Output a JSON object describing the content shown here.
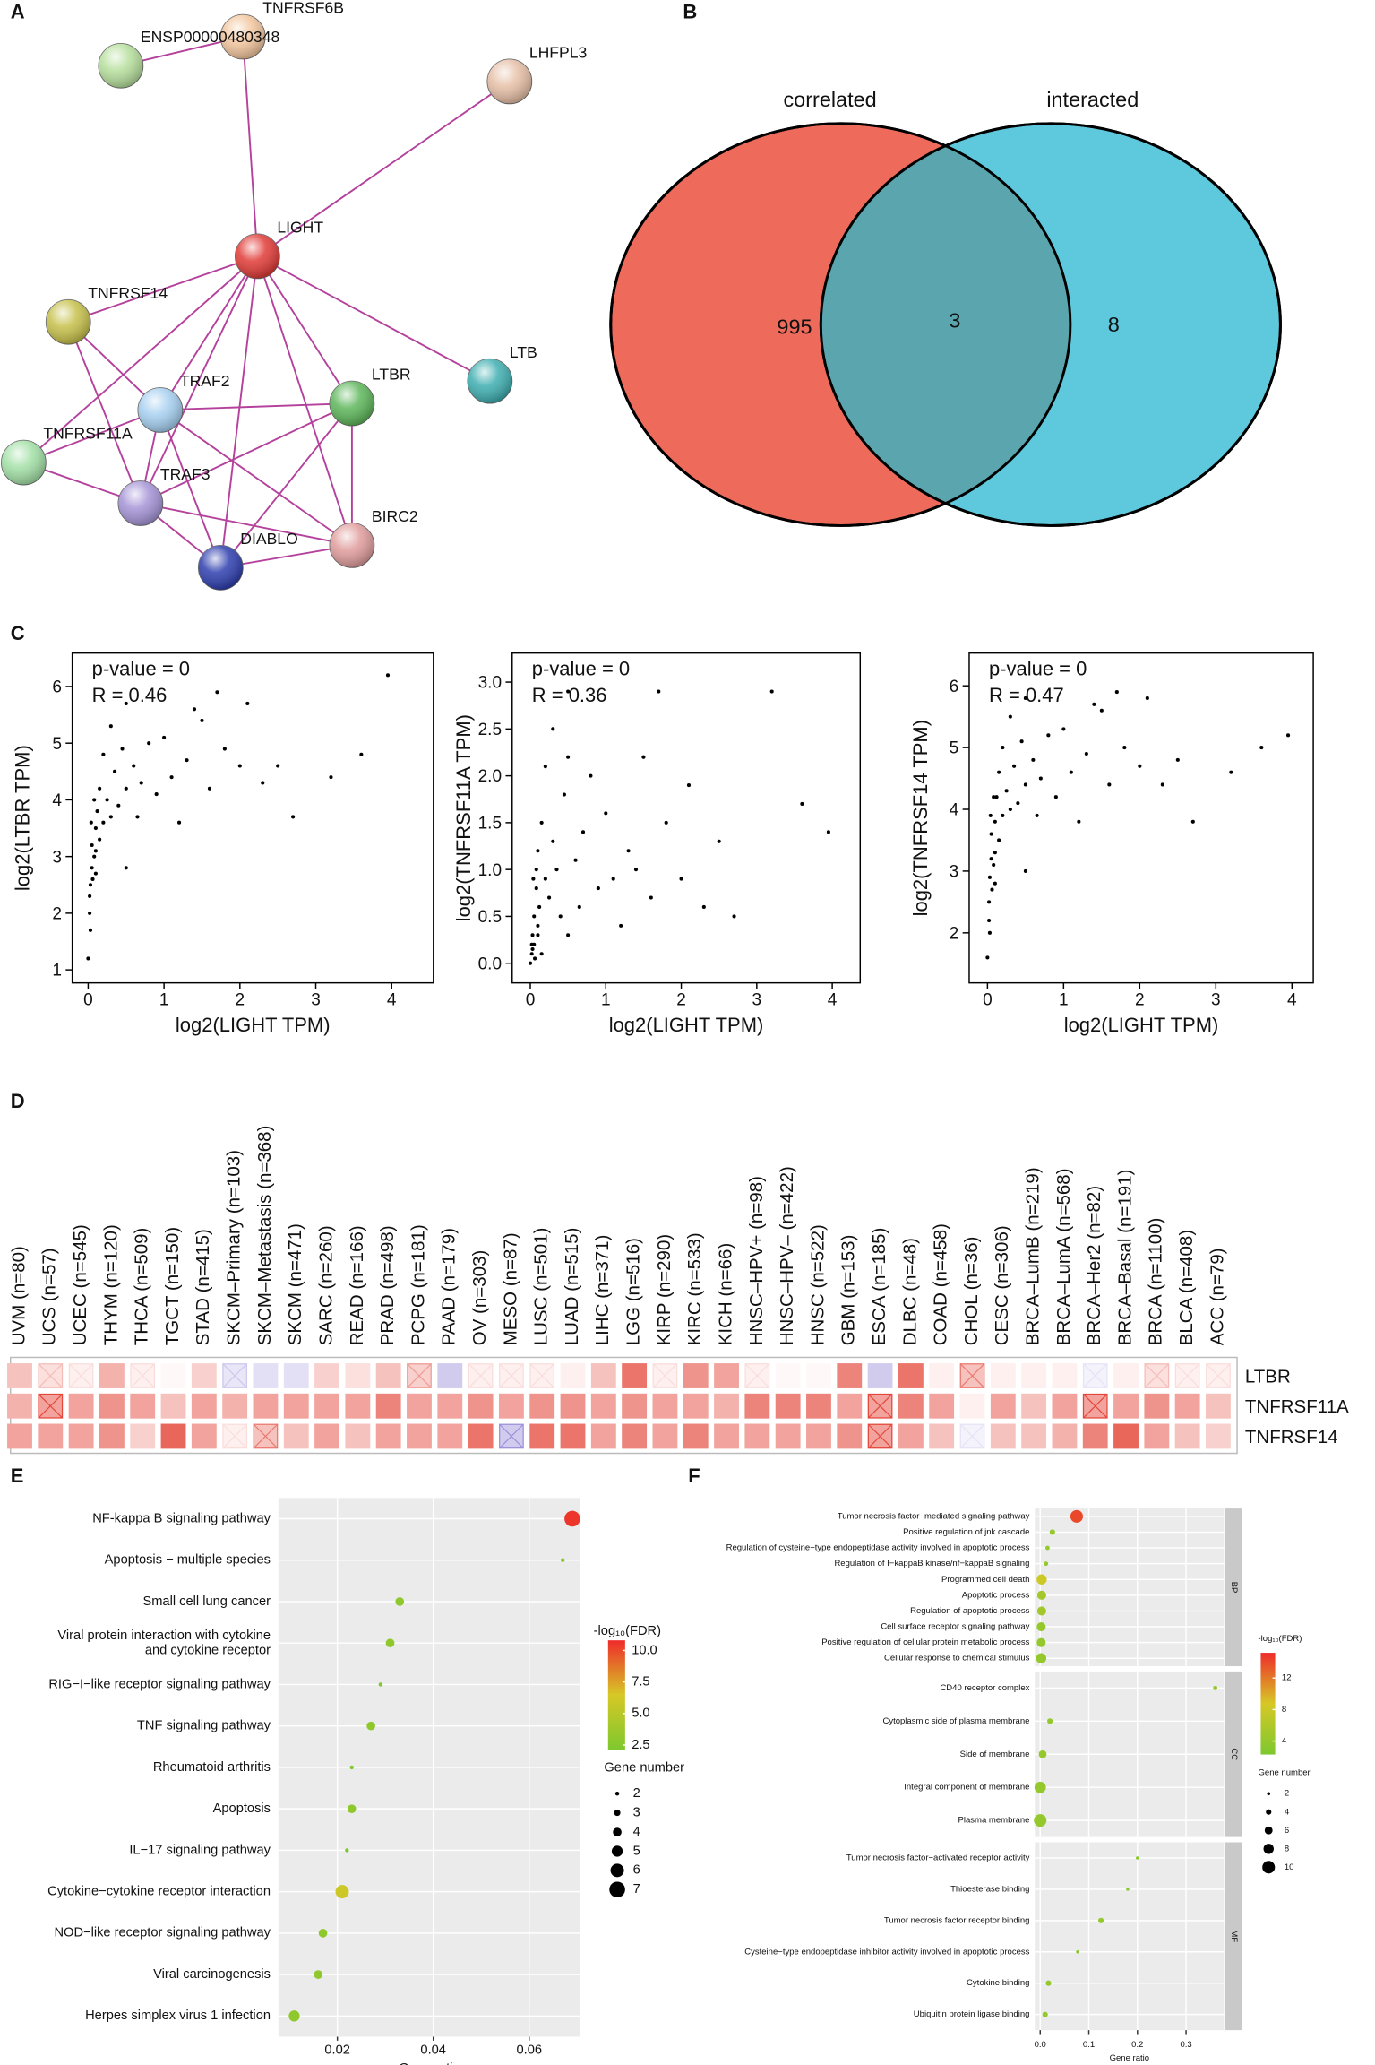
{
  "chart_data": [
    {
      "type": "network",
      "label": "A",
      "edge_color": "#b4419c",
      "nodes": [
        {
          "name": "TNFRSF6B",
          "color": "#f3c69e"
        },
        {
          "name": "ENSP00000480348",
          "color": "#b6df9c"
        },
        {
          "name": "LHFPL3",
          "color": "#e6bfa6"
        },
        {
          "name": "LIGHT",
          "color": "#e03a36"
        },
        {
          "name": "TNFRSF14",
          "color": "#c6c04a"
        },
        {
          "name": "TRAF2",
          "color": "#a6cff0"
        },
        {
          "name": "LTBR",
          "color": "#5db65a"
        },
        {
          "name": "LTB",
          "color": "#3eaeb0"
        },
        {
          "name": "TNFRSF11A",
          "color": "#a2e0a6"
        },
        {
          "name": "TRAF3",
          "color": "#a594d6"
        },
        {
          "name": "DIABLO",
          "color": "#2e3eae"
        },
        {
          "name": "BIRC2",
          "color": "#e09c9c"
        }
      ],
      "edges": [
        [
          1,
          0
        ],
        [
          0,
          3
        ],
        [
          2,
          3
        ],
        [
          3,
          4
        ],
        [
          3,
          5
        ],
        [
          3,
          6
        ],
        [
          3,
          7
        ],
        [
          3,
          8
        ],
        [
          3,
          9
        ],
        [
          3,
          10
        ],
        [
          3,
          11
        ],
        [
          4,
          5
        ],
        [
          4,
          9
        ],
        [
          5,
          8
        ],
        [
          5,
          9
        ],
        [
          5,
          6
        ],
        [
          5,
          11
        ],
        [
          5,
          10
        ],
        [
          9,
          8
        ],
        [
          9,
          6
        ],
        [
          9,
          11
        ],
        [
          9,
          10
        ],
        [
          6,
          11
        ],
        [
          6,
          10
        ],
        [
          10,
          11
        ]
      ]
    },
    {
      "type": "venn",
      "label": "B",
      "sets": [
        {
          "name": "correlated",
          "color": "#ee6b5b",
          "value": 995
        },
        {
          "name": "interacted",
          "color": "#5ec8dc",
          "value": 8
        }
      ],
      "intersection": {
        "value": 3,
        "color": "#5ba6ae"
      }
    },
    {
      "type": "scatter",
      "label": "C",
      "xlabel": "log2(LIGHT TPM)",
      "ylabel": "log2(LTBR TPM)",
      "annotations": [
        "p-value = 0",
        "R = 0.46"
      ],
      "xlim": [
        -0.21,
        4.55
      ],
      "ylim": [
        0.77,
        6.59
      ],
      "xticks": [
        0,
        1,
        2,
        3,
        4
      ],
      "yticks": [
        1,
        2,
        3,
        4,
        5,
        6
      ],
      "x": [
        0,
        0.02,
        0.03,
        0.05,
        0.05,
        0.08,
        0.1,
        0.1,
        0.12,
        0.15,
        0.15,
        0.2,
        0.2,
        0.25,
        0.3,
        0.3,
        0.35,
        0.4,
        0.45,
        0.5,
        0.5,
        0.6,
        0.65,
        0.7,
        0.8,
        0.9,
        1.0,
        1.1,
        1.2,
        1.3,
        1.5,
        1.6,
        1.7,
        1.8,
        2.0,
        2.1,
        2.3,
        2.5,
        2.7,
        3.2,
        3.6,
        3.95,
        0.02,
        0.04,
        0.06,
        0.08,
        0.1,
        0.03,
        0.5,
        1.4
      ],
      "y": [
        1.2,
        2.0,
        2.5,
        2.8,
        3.2,
        3.0,
        3.5,
        2.7,
        3.8,
        3.3,
        4.2,
        3.6,
        4.8,
        4.0,
        3.7,
        5.3,
        4.5,
        3.9,
        4.9,
        4.2,
        5.7,
        4.6,
        3.7,
        4.3,
        5.0,
        4.1,
        5.1,
        4.4,
        3.6,
        4.7,
        5.4,
        4.2,
        5.9,
        4.9,
        4.6,
        5.7,
        4.3,
        4.6,
        3.7,
        4.4,
        4.8,
        6.2,
        2.3,
        3.6,
        2.6,
        4.0,
        3.1,
        1.7,
        2.8,
        5.6
      ]
    },
    {
      "type": "scatter",
      "xlabel": "log2(LIGHT TPM)",
      "ylabel": "log2(TNFRSF11A TPM)",
      "annotations": [
        "p-value = 0",
        "R = 0.36"
      ],
      "xlim": [
        -0.24,
        4.37
      ],
      "ylim": [
        -0.21,
        3.31
      ],
      "xticks": [
        0,
        1,
        2,
        3,
        4
      ],
      "yticks": [
        {
          "value": 0,
          "label": "0.0"
        },
        0.5,
        {
          "value": 1,
          "label": "1.0"
        },
        1.5,
        {
          "value": 2,
          "label": "2.0"
        },
        2.5,
        {
          "value": 3,
          "label": "3.0"
        }
      ],
      "x": [
        0,
        0.02,
        0.03,
        0.05,
        0.05,
        0.08,
        0.1,
        0.1,
        0.12,
        0.15,
        0.15,
        0.2,
        0.2,
        0.25,
        0.3,
        0.3,
        0.35,
        0.4,
        0.45,
        0.5,
        0.5,
        0.6,
        0.65,
        0.7,
        0.8,
        0.9,
        1.0,
        1.1,
        1.2,
        1.3,
        1.5,
        1.6,
        1.7,
        1.8,
        2.0,
        2.1,
        2.3,
        2.5,
        2.7,
        3.2,
        3.6,
        3.95,
        0.02,
        0.04,
        0.06,
        0.08,
        0.1,
        0.03,
        0.5,
        1.4
      ],
      "y": [
        0.0,
        0.1,
        0.3,
        0.5,
        0.2,
        0.8,
        0.4,
        1.2,
        0.6,
        0.1,
        1.5,
        0.9,
        2.1,
        0.7,
        1.3,
        2.5,
        1.0,
        0.5,
        1.8,
        0.3,
        2.9,
        1.1,
        0.6,
        1.4,
        2.0,
        0.8,
        1.6,
        0.9,
        0.4,
        1.2,
        2.2,
        0.7,
        2.9,
        1.5,
        0.9,
        1.9,
        0.6,
        1.3,
        0.5,
        2.9,
        1.7,
        1.4,
        0.2,
        0.9,
        0.05,
        1.0,
        0.3,
        0.15,
        2.2,
        1.0
      ]
    },
    {
      "type": "scatter",
      "xlabel": "log2(LIGHT TPM)",
      "ylabel": "log2(TNFRSF14 TPM)",
      "annotations": [
        "p-value = 0",
        "R = 0.47"
      ],
      "xlim": [
        -0.24,
        4.28
      ],
      "ylim": [
        1.19,
        6.53
      ],
      "xticks": [
        0,
        1,
        2,
        3,
        4
      ],
      "yticks": [
        2,
        3,
        4,
        5,
        6
      ],
      "x": [
        0,
        0.02,
        0.03,
        0.05,
        0.05,
        0.08,
        0.1,
        0.1,
        0.12,
        0.15,
        0.15,
        0.2,
        0.2,
        0.25,
        0.3,
        0.3,
        0.35,
        0.4,
        0.45,
        0.5,
        0.5,
        0.6,
        0.65,
        0.7,
        0.8,
        0.9,
        1.0,
        1.1,
        1.2,
        1.3,
        1.5,
        1.6,
        1.7,
        1.8,
        2.0,
        2.1,
        2.3,
        2.5,
        2.7,
        3.2,
        3.6,
        3.95,
        0.02,
        0.04,
        0.06,
        0.08,
        0.1,
        0.03,
        0.5,
        1.4
      ],
      "y": [
        1.6,
        2.5,
        2.9,
        3.2,
        3.6,
        3.1,
        3.8,
        2.8,
        4.2,
        3.5,
        4.6,
        3.9,
        5.0,
        4.3,
        4.0,
        5.5,
        4.7,
        4.1,
        5.1,
        4.4,
        5.8,
        4.8,
        3.9,
        4.5,
        5.2,
        4.2,
        5.3,
        4.6,
        3.8,
        4.9,
        5.6,
        4.4,
        5.9,
        5.0,
        4.7,
        5.8,
        4.4,
        4.8,
        3.8,
        4.6,
        5.0,
        5.2,
        2.2,
        3.9,
        2.7,
        4.2,
        3.3,
        2.0,
        3.0,
        5.7
      ]
    },
    {
      "type": "heatmap",
      "label": "D",
      "clim": [
        -0.6,
        0.6
      ],
      "colors": [
        "#7566cc",
        "#ffffff",
        "#e4473a"
      ],
      "columns": [
        "UVM (n=80)",
        "UCS (n=57)",
        "UCEC (n=545)",
        "THYM (n=120)",
        "THCA (n=509)",
        "TGCT (n=150)",
        "STAD (n=415)",
        "SKCM–Primary (n=103)",
        "SKCM–Metastasis (n=368)",
        "SKCM (n=471)",
        "SARC (n=260)",
        "READ (n=166)",
        "PRAD (n=498)",
        "PCPG (n=181)",
        "PAAD (n=179)",
        "OV (n=303)",
        "MESO (n=87)",
        "LUSC (n=501)",
        "LUAD (n=515)",
        "LIHC (n=371)",
        "LGG (n=516)",
        "KIRP (n=290)",
        "KIRC (n=533)",
        "KICH (n=66)",
        "HNSC–HPV+ (n=98)",
        "HNSC–HPV– (n=422)",
        "HNSC (n=522)",
        "GBM (n=153)",
        "ESCA (n=185)",
        "DLBC (n=48)",
        "COAD (n=458)",
        "CHOL (n=36)",
        "CESC (n=306)",
        "BRCA–LumB (n=219)",
        "BRCA–LumA (n=568)",
        "BRCA–Her2 (n=82)",
        "BRCA–Basal (n=191)",
        "BRCA (n=1100)",
        "BLCA (n=408)",
        "ACC (n=79)"
      ],
      "rows": [
        "LTBR",
        "TNFRSF11A",
        "TNFRSF14"
      ],
      "values": [
        [
          0.2,
          0.1,
          0.05,
          0.25,
          0.05,
          0.02,
          0.15,
          -0.1,
          -0.12,
          -0.12,
          0.15,
          0.1,
          0.2,
          0.15,
          -0.2,
          0.05,
          0.05,
          0.05,
          0.05,
          0.2,
          0.45,
          0.05,
          0.35,
          0.3,
          0.05,
          0.02,
          0.02,
          0.4,
          -0.2,
          0.45,
          0.05,
          0.2,
          0.05,
          0.05,
          0.05,
          -0.05,
          0.05,
          0.1,
          0.05,
          0.05
        ],
        [
          0.25,
          0.3,
          0.3,
          0.35,
          0.3,
          0.2,
          0.3,
          0.25,
          0.3,
          0.3,
          0.3,
          0.3,
          0.4,
          0.3,
          0.3,
          0.35,
          0.3,
          0.35,
          0.35,
          0.3,
          0.35,
          0.3,
          0.3,
          0.25,
          0.4,
          0.4,
          0.4,
          0.3,
          0.3,
          0.4,
          0.3,
          0.05,
          0.3,
          0.2,
          0.3,
          0.3,
          0.3,
          0.35,
          0.3,
          0.2
        ],
        [
          0.3,
          0.3,
          0.3,
          0.35,
          0.15,
          0.5,
          0.3,
          0.05,
          0.2,
          0.2,
          0.3,
          0.2,
          0.3,
          0.3,
          0.3,
          0.45,
          -0.2,
          0.45,
          0.45,
          0.3,
          0.4,
          0.3,
          0.4,
          0.3,
          0.3,
          0.3,
          0.3,
          0.35,
          0.3,
          0.3,
          0.2,
          -0.05,
          0.2,
          0.2,
          0.25,
          0.4,
          0.5,
          0.3,
          0.2,
          0.15
        ]
      ],
      "crossed": [
        [
          1,
          2,
          4,
          7,
          13,
          15,
          16,
          17,
          21,
          24,
          31,
          35,
          37,
          38,
          39
        ],
        [
          1,
          28,
          35
        ],
        [
          7,
          8,
          16,
          28,
          31
        ]
      ]
    },
    {
      "type": "dot",
      "label": "E",
      "xlabel": "Gene ratio",
      "xlim": [
        0.0077,
        0.0707
      ],
      "xticks": [
        0.02,
        0.04,
        0.06
      ],
      "categories": [
        "NF-kappa B signaling pathway",
        "Apoptosis − multiple species",
        "Small cell lung cancer",
        "Viral protein interaction with cytokine\nand cytokine receptor",
        "RIG−I−like receptor signaling pathway",
        "TNF signaling pathway",
        "Rheumatoid arthritis",
        "Apoptosis",
        "IL−17 signaling pathway",
        "Cytokine−cytokine receptor interaction",
        "NOD−like receptor signaling pathway",
        "Viral carcinogenesis",
        "Herpes simplex virus 1 infection"
      ],
      "values": [
        0.069,
        0.067,
        0.033,
        0.031,
        0.029,
        0.027,
        0.023,
        0.023,
        0.022,
        0.021,
        0.017,
        0.016,
        0.011
      ],
      "fdr": [
        10.5,
        2.5,
        3,
        3,
        2.2,
        3,
        2.2,
        3,
        2,
        6,
        3,
        3,
        3
      ],
      "gene_number": [
        7,
        2,
        4,
        4,
        2,
        4,
        2,
        4,
        2,
        6,
        4,
        4,
        5
      ],
      "color_legend": {
        "title": "-log₁₀(FDR)",
        "lim": [
          2.1,
          10.8
        ],
        "colors": [
          "#7dc82e",
          "#d6c826",
          "#ef2b2b"
        ],
        "ticks": [
          {
            "value": 10,
            "label": "10.0"
          },
          7.5,
          {
            "value": 5,
            "label": "5.0"
          },
          2.5
        ]
      },
      "size_legend": {
        "title": "Gene number",
        "values": [
          2,
          3,
          4,
          5,
          6,
          7
        ]
      }
    },
    {
      "type": "dot",
      "label": "F",
      "xlabel": "Gene ratio",
      "xlim": [
        -0.011,
        0.378
      ],
      "xticks": [
        {
          "value": 0,
          "label": "0.0"
        },
        0.1,
        0.2,
        0.3
      ],
      "facets": [
        {
          "name": "BP",
          "categories": [
            "Tumor necrosis factor−mediated signaling pathway",
            "Positive regulation of jnk cascade",
            "Regulation of cysteine−type endopeptidase activity involved in apoptotic process",
            "Regulation of I−kappaB kinase/nf−kappaB signaling",
            "Programmed cell death",
            "Apoptotic process",
            "Regulation of apoptotic process",
            "Cell surface receptor signaling pathway",
            "Positive regulation of cellular protein metabolic process",
            "Cellular response to chemical stimulus"
          ],
          "values": [
            0.075,
            0.025,
            0.015,
            0.012,
            0.003,
            0.003,
            0.003,
            0.002,
            0.002,
            0.002
          ],
          "fdr": [
            14,
            4,
            4,
            4,
            8,
            5,
            5,
            4,
            4,
            4
          ],
          "gene_number": [
            10,
            4,
            3,
            3,
            8,
            7,
            7,
            7,
            7,
            8
          ]
        },
        {
          "name": "CC",
          "categories": [
            "CD40 receptor complex",
            "Cytoplasmic side of plasma membrane",
            "Side of membrane",
            "Integral component of membrane",
            "Plasma membrane"
          ],
          "values": [
            0.36,
            0.02,
            0.005,
            0,
            0
          ],
          "fdr": [
            4,
            4,
            4,
            4,
            4
          ],
          "gene_number": [
            3,
            4,
            6,
            9,
            10
          ]
        },
        {
          "name": "MF",
          "categories": [
            "Tumor necrosis factor−activated receptor activity",
            "Thioesterase binding",
            "Tumor necrosis factor receptor binding",
            "Cysteine−type endopeptidase inhibitor activity involved in apoptotic process",
            "Cytokine binding",
            "Ubiquitin protein ligase binding"
          ],
          "values": [
            0.2,
            0.18,
            0.125,
            0.077,
            0.017,
            0.01
          ],
          "fdr": [
            3,
            3,
            4,
            3,
            4,
            4
          ],
          "gene_number": [
            2,
            2,
            4,
            2,
            4,
            4
          ]
        }
      ],
      "color_legend": {
        "title": "-log₁₀(FDR)",
        "lim": [
          2.3,
          15.2
        ],
        "colors": [
          "#7dc82e",
          "#d6c826",
          "#ef2b2b"
        ],
        "ticks": [
          12,
          8,
          4
        ]
      },
      "size_legend": {
        "title": "Gene number",
        "values": [
          2,
          4,
          6,
          8,
          10
        ]
      }
    }
  ]
}
